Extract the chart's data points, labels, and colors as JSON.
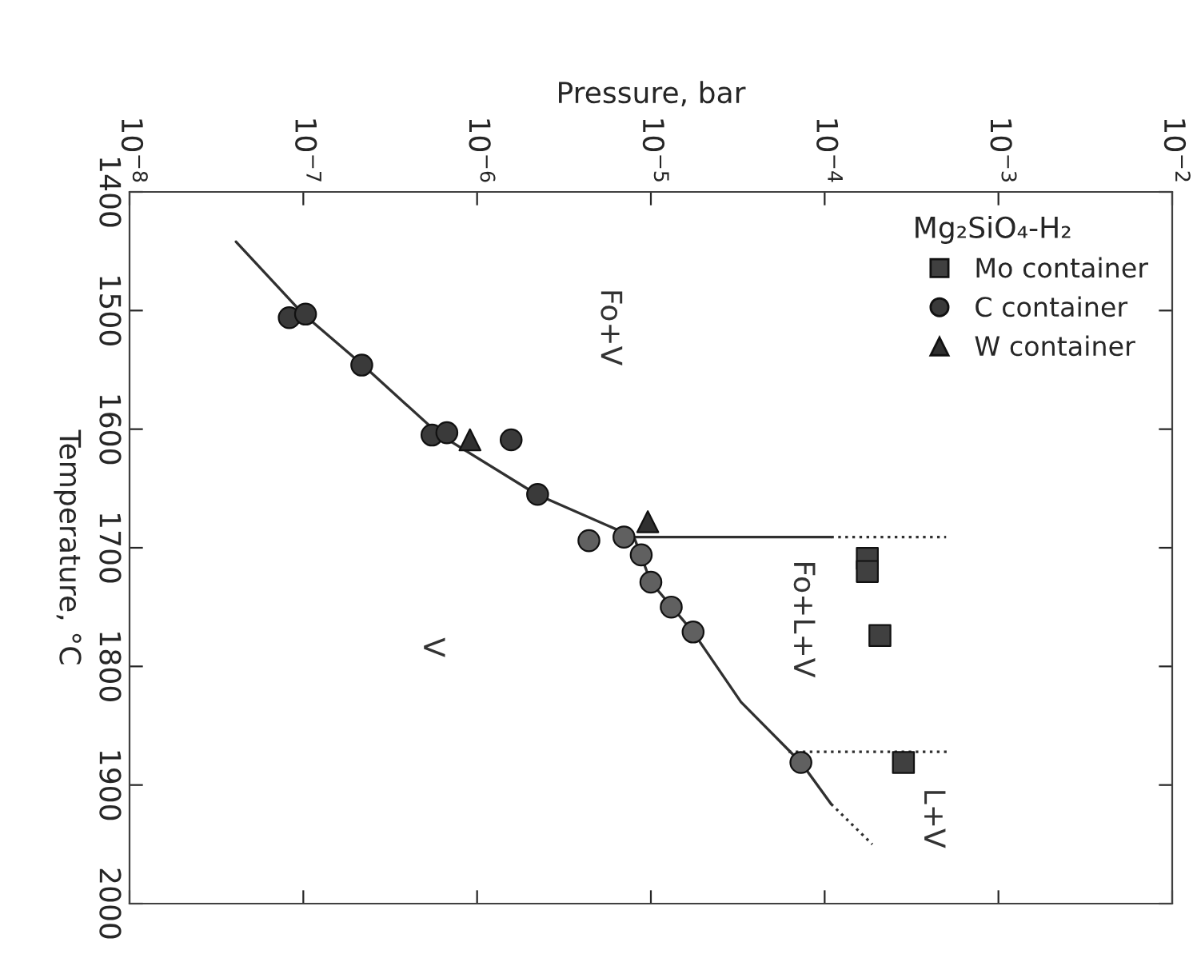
{
  "chart_data": {
    "type": "scatter",
    "xlabel": "Pressure, bar",
    "ylabel": "Temperature, °C",
    "log": "x",
    "xlim": [
      1e-08,
      0.01
    ],
    "xticks": [
      {
        "value": 1e-08,
        "label": "10$^{−8}$"
      },
      {
        "value": 1e-07,
        "label": "10$^{−7}$"
      },
      {
        "value": 1e-06,
        "label": "10$^{−6}$"
      },
      {
        "value": 1e-05,
        "label": "10$^{−5}$"
      },
      {
        "value": 0.0001,
        "label": "10$^{−4}$"
      },
      {
        "value": 0.001,
        "label": "10$^{−3}$"
      },
      {
        "value": 0.01,
        "label": "10$^{−2}$"
      }
    ],
    "ylim": [
      2000,
      1400
    ],
    "yticks": [
      1400,
      1500,
      1600,
      1700,
      1800,
      1900,
      2000
    ],
    "grid": false,
    "legend": "top right",
    "legend_title": "Mg₂SiO₄-H₂",
    "series": [
      {
        "type": "line",
        "color": "#303030",
        "line_style": "solid",
        "marker": "none",
        "x": [
          4.1e-08,
          1e-07,
          2.2e-07,
          6e-07,
          2.2e-06,
          8e-06,
          1e-05,
          1.75e-05,
          3.3e-05,
          7.3e-05,
          0.000109
        ],
        "values": [
          1442,
          1503,
          1546,
          1604,
          1655,
          1691,
          1729,
          1771,
          1830,
          1881,
          1916
        ]
      },
      {
        "type": "line",
        "color": "#303030",
        "line_style": "dotted",
        "marker": "none",
        "x": [
          0.000109,
          0.000188
        ],
        "values": [
          1916,
          1950
        ]
      },
      {
        "type": "line",
        "color": "#303030",
        "line_style": "solid",
        "marker": "none",
        "x": [
          8e-06,
          0.000109
        ],
        "values": [
          1691,
          1691
        ]
      },
      {
        "type": "line",
        "color": "#303030",
        "line_style": "dotted",
        "marker": "none",
        "x": [
          0.000109,
          0.0005
        ],
        "values": [
          1691,
          1691
        ]
      },
      {
        "type": "line",
        "color": "#303030",
        "line_style": "dotted",
        "marker": "none",
        "x": [
          6.2e-05,
          0.00052
        ],
        "values": [
          1872,
          1872
        ]
      },
      {
        "name": "Mo container",
        "marker": "square",
        "color": "#404040",
        "x": [
          0.000176,
          0.000176,
          0.000208,
          0.000284
        ],
        "values": [
          1709,
          1720,
          1774,
          1881
        ]
      },
      {
        "marker": "circle",
        "color": "#606060",
        "x": [
          4.4e-06,
          7e-06,
          8.8e-06,
          1e-05,
          1.31e-05,
          1.75e-05,
          7.3e-05
        ],
        "values": [
          1694,
          1691,
          1706,
          1729,
          1750,
          1771,
          1881
        ]
      },
      {
        "name": "C container",
        "marker": "circle",
        "color": "#3a3a3a",
        "x": [
          8.3e-08,
          1.03e-07,
          2.17e-07,
          5.5e-07,
          6.7e-07,
          1.57e-06,
          2.23e-06
        ],
        "values": [
          1506,
          1503,
          1546,
          1605,
          1603,
          1609,
          1655
        ]
      },
      {
        "name": "W container",
        "marker": "triangle",
        "color": "#303030",
        "x": [
          9.1e-07,
          9.6e-06
        ],
        "values": [
          1609,
          1678
        ]
      }
    ],
    "annotations": [
      "Fo+V",
      "V",
      "Fo+L+V",
      "L+V"
    ]
  }
}
